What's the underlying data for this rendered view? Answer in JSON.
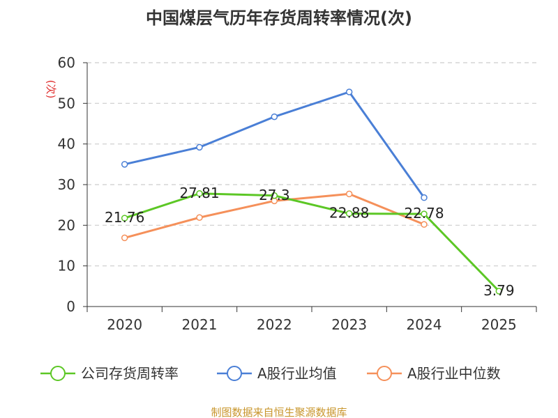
{
  "chart_data": {
    "type": "line",
    "title": "中国煤层气历年存货周转率情况(次)",
    "ylabel": "(次)",
    "xlabel": "",
    "categories": [
      "2020",
      "2021",
      "2022",
      "2023",
      "2024",
      "2025"
    ],
    "yticks": [
      "0",
      "10",
      "20",
      "30",
      "40",
      "50",
      "60"
    ],
    "ylim": [
      0,
      60
    ],
    "grid": true,
    "legend_position": "bottom",
    "series": [
      {
        "name": "公司存货周转率",
        "color": "#5cc725",
        "values": [
          21.76,
          27.81,
          27.3,
          22.88,
          22.78,
          3.79
        ],
        "labels": [
          "21.76",
          "27.81",
          "27.3",
          "22.88",
          "22.78",
          "3.79"
        ]
      },
      {
        "name": "A股行业均值",
        "color": "#4a7fd6",
        "values": [
          35.0,
          39.2,
          46.7,
          52.8,
          26.8,
          null
        ]
      },
      {
        "name": "A股行业中位数",
        "color": "#f5905a",
        "values": [
          16.9,
          21.9,
          26.0,
          27.7,
          20.2,
          null
        ]
      }
    ],
    "source": "制图数据来自恒生聚源数据库"
  },
  "colors": {
    "axis": "#333333",
    "grid": "#cccccc",
    "unit": "#e03030",
    "source": "#c8962c"
  }
}
